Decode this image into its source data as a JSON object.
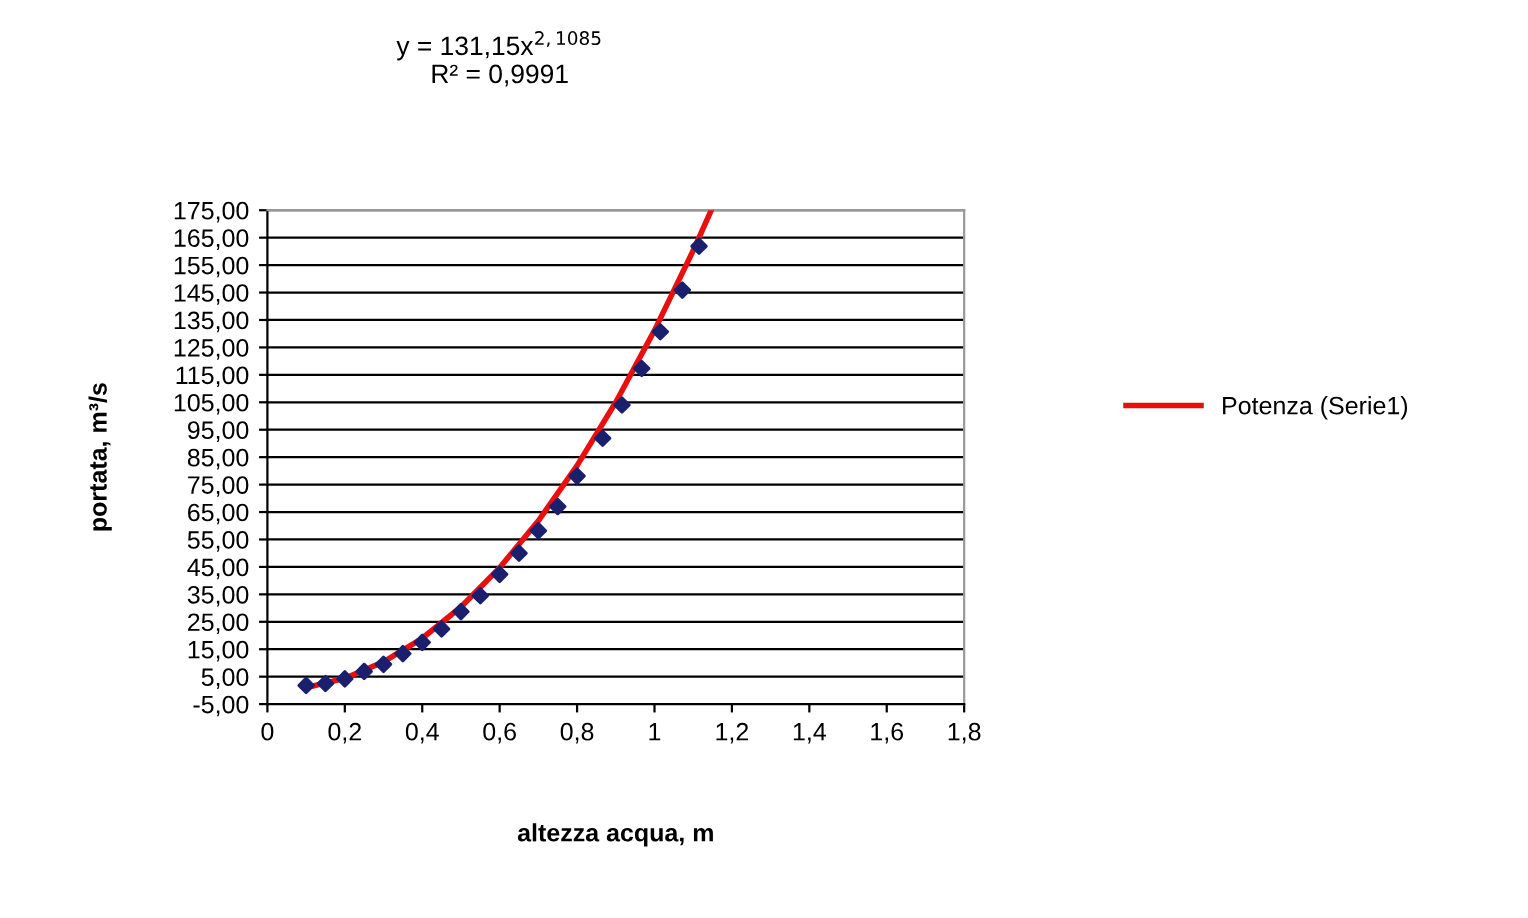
{
  "chart_data": {
    "type": "scatter",
    "xlabel": "altezza acqua, m",
    "ylabel": "portata, m³/s",
    "annotations": [
      "y = 131,15x$^{2,1085}$",
      "R² = 0,9991"
    ],
    "series": [
      {
        "color": "#1a1f6e",
        "marker": "diamond",
        "x": [
          0.1,
          0.15,
          0.2,
          0.25,
          0.3,
          0.35,
          0.4,
          0.45,
          0.5,
          0.55,
          0.6,
          0.65,
          0.7,
          0.75,
          0.8,
          0.866,
          0.916,
          0.967,
          1.015,
          1.072,
          1.115
        ],
        "values": [
          1.8,
          2.5,
          4.2,
          6.9,
          9.5,
          13.4,
          17.5,
          22.4,
          28.7,
          34.5,
          42.3,
          50.0,
          58.2,
          67.0,
          78.1,
          91.9,
          104.0,
          117.3,
          130.7,
          145.9,
          161.9
        ]
      },
      {
        "type": "line",
        "name": "Potenza (Serie1)",
        "color": "#e8100f",
        "x": [
          0.1,
          0.2,
          0.3,
          0.4,
          0.5,
          0.6,
          0.7,
          0.8,
          0.9,
          1.0,
          1.1,
          1.145
        ],
        "values": [
          1.0,
          4.4,
          10.4,
          19.0,
          30.4,
          44.7,
          61.8,
          81.9,
          105.0,
          131.2,
          160.3,
          174.5
        ]
      }
    ],
    "xlim": [
      0,
      1.8
    ],
    "ylim": [
      -5,
      175
    ],
    "xticks": [
      0,
      {
        "value": 0.2,
        "label": "0,2"
      },
      {
        "value": 0.4,
        "label": "0,4"
      },
      {
        "value": 0.6,
        "label": "0,6"
      },
      {
        "value": 0.8,
        "label": "0,8"
      },
      1,
      {
        "value": 1.2,
        "label": "1,2"
      },
      {
        "value": 1.4,
        "label": "1,4"
      },
      {
        "value": 1.6,
        "label": "1,6"
      },
      {
        "value": 1.8,
        "label": "1,8"
      }
    ],
    "yticks": [
      {
        "value": -5,
        "label": "-5,00"
      },
      {
        "value": 5,
        "label": "5,00"
      },
      {
        "value": 15,
        "label": "15,00"
      },
      {
        "value": 25,
        "label": "25,00"
      },
      {
        "value": 35,
        "label": "35,00"
      },
      {
        "value": 45,
        "label": "45,00"
      },
      {
        "value": 55,
        "label": "55,00"
      },
      {
        "value": 65,
        "label": "65,00"
      },
      {
        "value": 75,
        "label": "75,00"
      },
      {
        "value": 85,
        "label": "85,00"
      },
      {
        "value": 95,
        "label": "95,00"
      },
      {
        "value": 105,
        "label": "105,00"
      },
      {
        "value": 115,
        "label": "115,00"
      },
      {
        "value": 125,
        "label": "125,00"
      },
      {
        "value": 135,
        "label": "135,00"
      },
      {
        "value": 145,
        "label": "145,00"
      },
      {
        "value": 155,
        "label": "155,00"
      },
      {
        "value": 165,
        "label": "165,00"
      },
      {
        "value": 175,
        "label": "175,00"
      }
    ],
    "grid": "y",
    "legend": "right"
  }
}
